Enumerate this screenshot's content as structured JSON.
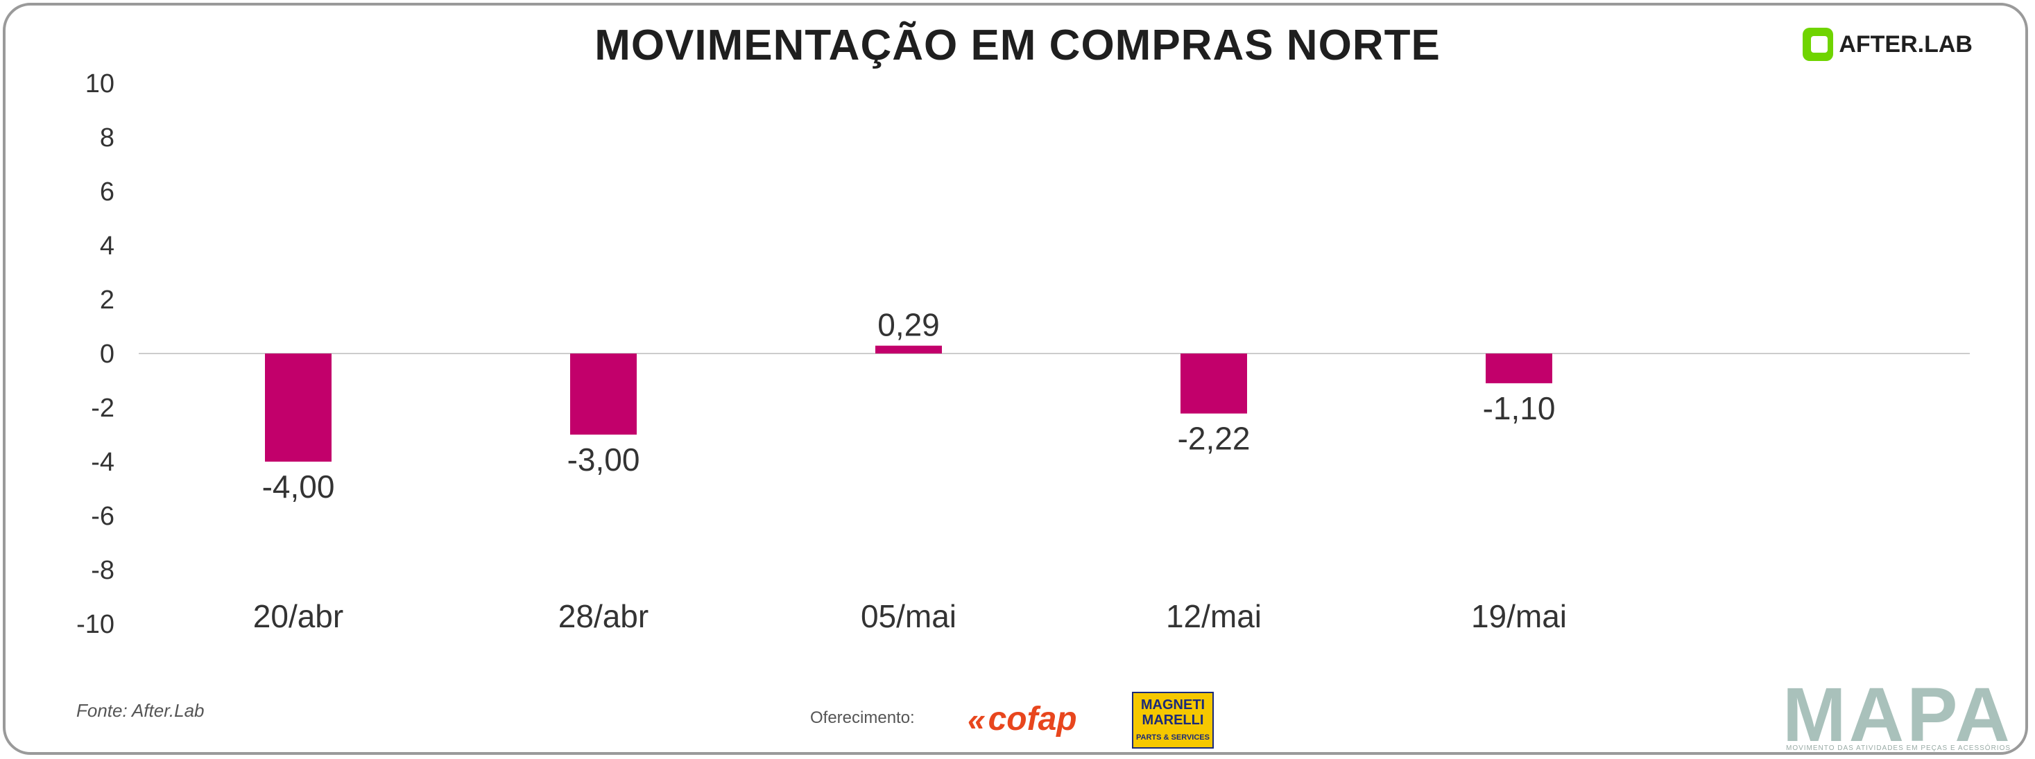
{
  "header": {
    "title": "MOVIMENTAÇÃO EM COMPRAS NORTE",
    "brand_text": "AFTER.LAB"
  },
  "footer": {
    "source": "Fonte: After.Lab",
    "sponsor_label": "Oferecimento:",
    "sponsor1": "cofap",
    "sponsor2_line1": "MAGNETI",
    "sponsor2_line2": "MARELLI",
    "sponsor2_line3": "PARTS & SERVICES",
    "mapa": "MAPA",
    "mapa_sub": "MOVIMENTO DAS ATIVIDADES EM PEÇAS E ACESSÓRIOS"
  },
  "colors": {
    "bar": "#c2006b",
    "brand_green": "#6fd400",
    "zero_line": "#cccccc"
  },
  "chart_data": {
    "type": "bar",
    "title": "MOVIMENTAÇÃO EM COMPRAS NORTE",
    "categories": [
      "20/abr",
      "28/abr",
      "05/mai",
      "12/mai",
      "19/mai"
    ],
    "values": [
      -4.0,
      -3.0,
      0.29,
      -2.22,
      -1.1
    ],
    "data_labels": [
      "-4,00",
      "-3,00",
      "0,29",
      "-2,22",
      "-1,10"
    ],
    "ylim": [
      -10,
      10
    ],
    "yticks": [
      10,
      8,
      6,
      4,
      2,
      0,
      -2,
      -4,
      -6,
      -8,
      -10
    ],
    "ytick_labels": [
      "10",
      "8",
      "6",
      "4",
      "2",
      "0",
      "-2",
      "-4",
      "-6",
      "-8",
      "-10"
    ],
    "xlabel": "",
    "ylabel": "",
    "grid": false,
    "legend": false
  }
}
